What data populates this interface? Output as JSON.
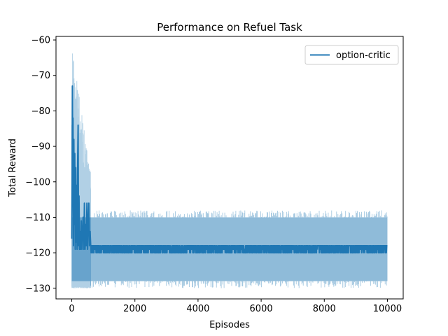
{
  "chart_data": {
    "type": "line",
    "title": "Performance on Refuel Task",
    "xlabel": "Episodes",
    "ylabel": "Total Reward",
    "xlim": [
      -500,
      10500
    ],
    "ylim": [
      -133,
      -59
    ],
    "xticks": [
      0,
      2000,
      4000,
      6000,
      8000,
      10000
    ],
    "yticks": [
      -130,
      -120,
      -110,
      -100,
      -90,
      -80,
      -70,
      -60
    ],
    "grid": false,
    "legend_position": "top-right",
    "colors": {
      "line": "#1f77b4",
      "band": "#1f77b4",
      "axes": "#000000"
    },
    "series": [
      {
        "name": "option-critic",
        "episode_range": [
          0,
          10000
        ],
        "early_values": [
          [
            0,
            -116
          ],
          [
            10,
            -100
          ],
          [
            20,
            -73
          ],
          [
            30,
            -95
          ],
          [
            40,
            -82
          ],
          [
            55,
            -118
          ],
          [
            65,
            -88
          ],
          [
            80,
            -112
          ],
          [
            95,
            -92
          ],
          [
            110,
            -119
          ],
          [
            125,
            -96
          ],
          [
            140,
            -117
          ],
          [
            155,
            -101
          ],
          [
            170,
            -119
          ],
          [
            185,
            -95
          ],
          [
            200,
            -84
          ],
          [
            215,
            -118
          ],
          [
            230,
            -104
          ],
          [
            245,
            -119
          ],
          [
            260,
            -114
          ],
          [
            280,
            -119
          ],
          [
            300,
            -111
          ],
          [
            320,
            -119
          ],
          [
            340,
            -114
          ],
          [
            360,
            -110
          ],
          [
            380,
            -119
          ],
          [
            400,
            -106
          ],
          [
            420,
            -119
          ],
          [
            440,
            -112
          ],
          [
            460,
            -118
          ],
          [
            480,
            -106
          ],
          [
            500,
            -119
          ],
          [
            520,
            -112
          ],
          [
            540,
            -106
          ],
          [
            560,
            -118
          ],
          [
            580,
            -114
          ],
          [
            600,
            -118
          ]
        ],
        "steady_mean": -118,
        "steady_min": -120,
        "steady_max": -118,
        "band_steady": {
          "lower": -128,
          "upper": -110,
          "lower_extreme": -130,
          "upper_extreme": -108
        },
        "band_early": {
          "lower": -130,
          "upper": -62
        }
      }
    ]
  }
}
